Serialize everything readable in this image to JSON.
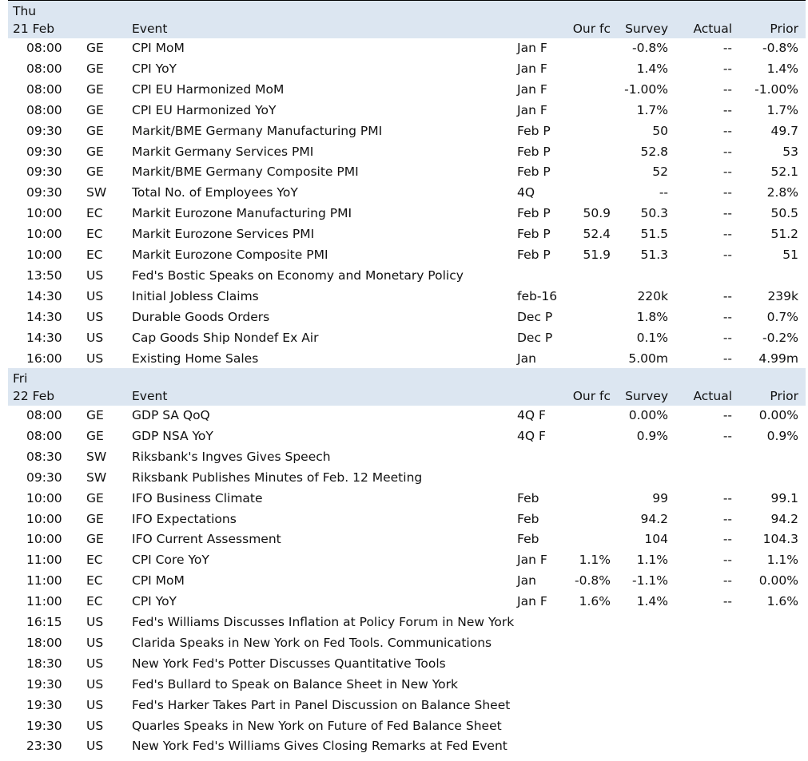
{
  "columns": {
    "event": "Event",
    "our_fc": "Our fc",
    "survey": "Survey",
    "actual": "Actual",
    "prior": "Prior"
  },
  "days": [
    {
      "day": "Thu",
      "date": "21 Feb",
      "rows": [
        {
          "time": "08:00",
          "country": "GE",
          "event": "CPI MoM",
          "period": "Jan F",
          "our_fc": "",
          "survey": "-0.8%",
          "actual": "--",
          "prior": "-0.8%"
        },
        {
          "time": "08:00",
          "country": "GE",
          "event": "CPI YoY",
          "period": "Jan F",
          "our_fc": "",
          "survey": "1.4%",
          "actual": "--",
          "prior": "1.4%"
        },
        {
          "time": "08:00",
          "country": "GE",
          "event": "CPI EU Harmonized MoM",
          "period": "Jan F",
          "our_fc": "",
          "survey": "-1.00%",
          "actual": "--",
          "prior": "-1.00%"
        },
        {
          "time": "08:00",
          "country": "GE",
          "event": "CPI EU Harmonized YoY",
          "period": "Jan F",
          "our_fc": "",
          "survey": "1.7%",
          "actual": "--",
          "prior": "1.7%"
        },
        {
          "time": "09:30",
          "country": "GE",
          "event": "Markit/BME Germany Manufacturing PMI",
          "period": "Feb P",
          "our_fc": "",
          "survey": "50",
          "actual": "--",
          "prior": "49.7"
        },
        {
          "time": "09:30",
          "country": "GE",
          "event": "Markit Germany Services PMI",
          "period": "Feb P",
          "our_fc": "",
          "survey": "52.8",
          "actual": "--",
          "prior": "53"
        },
        {
          "time": "09:30",
          "country": "GE",
          "event": "Markit/BME Germany Composite PMI",
          "period": "Feb P",
          "our_fc": "",
          "survey": "52",
          "actual": "--",
          "prior": "52.1"
        },
        {
          "time": "09:30",
          "country": "SW",
          "event": "Total No. of Employees YoY",
          "period": "4Q",
          "our_fc": "",
          "survey": "--",
          "actual": "--",
          "prior": "2.8%"
        },
        {
          "time": "10:00",
          "country": "EC",
          "event": "Markit Eurozone Manufacturing PMI",
          "period": "Feb P",
          "our_fc": "50.9",
          "survey": "50.3",
          "actual": "--",
          "prior": "50.5"
        },
        {
          "time": "10:00",
          "country": "EC",
          "event": "Markit Eurozone Services PMI",
          "period": "Feb P",
          "our_fc": "52.4",
          "survey": "51.5",
          "actual": "--",
          "prior": "51.2"
        },
        {
          "time": "10:00",
          "country": "EC",
          "event": "Markit Eurozone Composite PMI",
          "period": "Feb P",
          "our_fc": "51.9",
          "survey": "51.3",
          "actual": "--",
          "prior": "51"
        },
        {
          "time": "13:50",
          "country": "US",
          "event": "Fed's Bostic Speaks on Economy and Monetary Policy",
          "period": "",
          "our_fc": "",
          "survey": "",
          "actual": "",
          "prior": ""
        },
        {
          "time": "14:30",
          "country": "US",
          "event": "Initial Jobless Claims",
          "period": "feb-16",
          "our_fc": "",
          "survey": "220k",
          "actual": "--",
          "prior": "239k"
        },
        {
          "time": "14:30",
          "country": "US",
          "event": "Durable Goods Orders",
          "period": "Dec P",
          "our_fc": "",
          "survey": "1.8%",
          "actual": "--",
          "prior": "0.7%"
        },
        {
          "time": "14:30",
          "country": "US",
          "event": "Cap Goods Ship Nondef Ex Air",
          "period": "Dec P",
          "our_fc": "",
          "survey": "0.1%",
          "actual": "--",
          "prior": "-0.2%"
        },
        {
          "time": "16:00",
          "country": "US",
          "event": "Existing Home Sales",
          "period": "Jan",
          "our_fc": "",
          "survey": "5.00m",
          "actual": "--",
          "prior": "4.99m"
        }
      ]
    },
    {
      "day": "Fri",
      "date": "22 Feb",
      "rows": [
        {
          "time": "08:00",
          "country": "GE",
          "event": "GDP SA QoQ",
          "period": "4Q F",
          "our_fc": "",
          "survey": "0.00%",
          "actual": "--",
          "prior": "0.00%"
        },
        {
          "time": "08:00",
          "country": "GE",
          "event": "GDP NSA YoY",
          "period": "4Q F",
          "our_fc": "",
          "survey": "0.9%",
          "actual": "--",
          "prior": "0.9%"
        },
        {
          "time": "08:30",
          "country": "SW",
          "event": "Riksbank's Ingves Gives Speech",
          "period": "",
          "our_fc": "",
          "survey": "",
          "actual": "",
          "prior": ""
        },
        {
          "time": "09:30",
          "country": "SW",
          "event": "Riksbank Publishes Minutes of Feb. 12 Meeting",
          "period": "",
          "our_fc": "",
          "survey": "",
          "actual": "",
          "prior": ""
        },
        {
          "time": "10:00",
          "country": "GE",
          "event": "IFO Business Climate",
          "period": "Feb",
          "our_fc": "",
          "survey": "99",
          "actual": "--",
          "prior": "99.1"
        },
        {
          "time": "10:00",
          "country": "GE",
          "event": "IFO Expectations",
          "period": "Feb",
          "our_fc": "",
          "survey": "94.2",
          "actual": "--",
          "prior": "94.2"
        },
        {
          "time": "10:00",
          "country": "GE",
          "event": "IFO Current Assessment",
          "period": "Feb",
          "our_fc": "",
          "survey": "104",
          "actual": "--",
          "prior": "104.3"
        },
        {
          "time": "11:00",
          "country": "EC",
          "event": "CPI Core YoY",
          "period": "Jan F",
          "our_fc": "1.1%",
          "survey": "1.1%",
          "actual": "--",
          "prior": "1.1%"
        },
        {
          "time": "11:00",
          "country": "EC",
          "event": "CPI MoM",
          "period": "Jan",
          "our_fc": "-0.8%",
          "survey": "-1.1%",
          "actual": "--",
          "prior": "0.00%"
        },
        {
          "time": "11:00",
          "country": "EC",
          "event": "CPI YoY",
          "period": "Jan F",
          "our_fc": "1.6%",
          "survey": "1.4%",
          "actual": "--",
          "prior": "1.6%"
        },
        {
          "time": "16:15",
          "country": "US",
          "event": "Fed's Williams Discusses Inflation at Policy Forum in New York",
          "period": "",
          "our_fc": "",
          "survey": "",
          "actual": "",
          "prior": ""
        },
        {
          "time": "18:00",
          "country": "US",
          "event": "Clarida Speaks in New York on Fed Tools. Communications",
          "period": "",
          "our_fc": "",
          "survey": "",
          "actual": "",
          "prior": ""
        },
        {
          "time": "18:30",
          "country": "US",
          "event": "New York Fed's Potter Discusses Quantitative Tools",
          "period": "",
          "our_fc": "",
          "survey": "",
          "actual": "",
          "prior": ""
        },
        {
          "time": "19:30",
          "country": "US",
          "event": "Fed's Bullard to Speak on Balance Sheet in New York",
          "period": "",
          "our_fc": "",
          "survey": "",
          "actual": "",
          "prior": ""
        },
        {
          "time": "19:30",
          "country": "US",
          "event": "Fed's Harker Takes Part in Panel Discussion on Balance Sheet",
          "period": "",
          "our_fc": "",
          "survey": "",
          "actual": "",
          "prior": ""
        },
        {
          "time": "19:30",
          "country": "US",
          "event": "Quarles Speaks in New York on Future of Fed Balance Sheet",
          "period": "",
          "our_fc": "",
          "survey": "",
          "actual": "",
          "prior": ""
        },
        {
          "time": "23:30",
          "country": "US",
          "event": "New York Fed's Williams Gives Closing Remarks at Fed Event",
          "period": "",
          "our_fc": "",
          "survey": "",
          "actual": "",
          "prior": ""
        }
      ]
    }
  ]
}
